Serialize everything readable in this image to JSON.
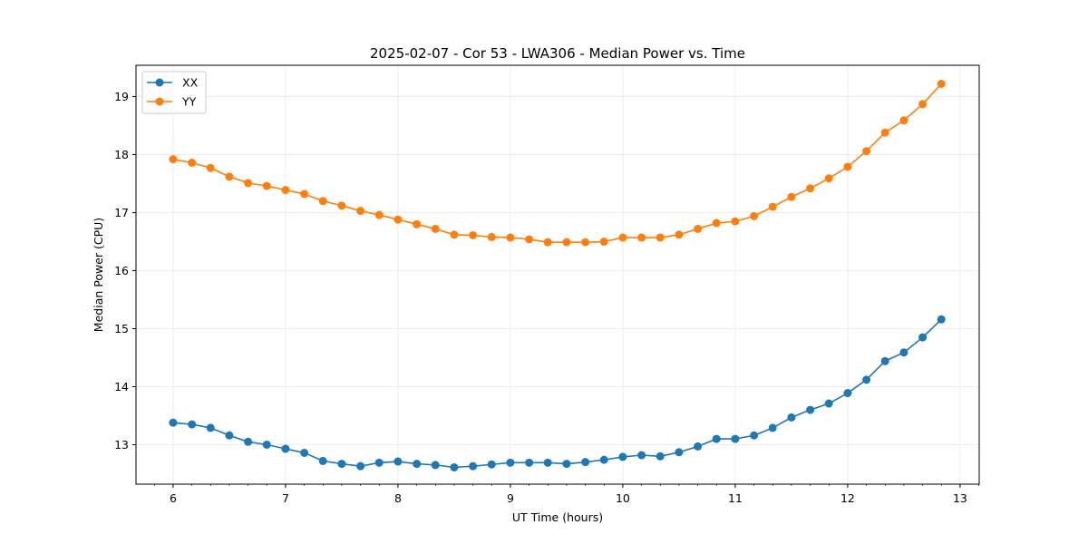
{
  "chart_data": {
    "type": "line",
    "title": "2025-02-07 - Cor 53 - LWA306 - Median Power vs. Time",
    "xlabel": "UT Time (hours)",
    "ylabel": "Median Power (CPU)",
    "xlim": [
      5.67,
      13.17
    ],
    "ylim": [
      12.32,
      19.54
    ],
    "xticks": [
      6,
      7,
      8,
      9,
      10,
      11,
      12,
      13
    ],
    "yticks": [
      13,
      14,
      15,
      16,
      17,
      18,
      19
    ],
    "grid": true,
    "legend_position": "top-left",
    "x": [
      6.0,
      6.167,
      6.333,
      6.5,
      6.667,
      6.833,
      7.0,
      7.167,
      7.333,
      7.5,
      7.667,
      7.833,
      8.0,
      8.167,
      8.333,
      8.5,
      8.667,
      8.833,
      9.0,
      9.167,
      9.333,
      9.5,
      9.667,
      9.833,
      10.0,
      10.167,
      10.333,
      10.5,
      10.667,
      10.833,
      11.0,
      11.167,
      11.333,
      11.5,
      11.667,
      11.833,
      12.0,
      12.167,
      12.333,
      12.5,
      12.667,
      12.833
    ],
    "series": [
      {
        "name": "XX",
        "color": "#1f77b4",
        "values": [
          13.38,
          13.35,
          13.29,
          13.16,
          13.05,
          13.0,
          12.93,
          12.86,
          12.72,
          12.67,
          12.63,
          12.69,
          12.71,
          12.67,
          12.65,
          12.61,
          12.63,
          12.66,
          12.69,
          12.69,
          12.69,
          12.67,
          12.7,
          12.74,
          12.79,
          12.82,
          12.8,
          12.87,
          12.97,
          13.1,
          13.1,
          13.16,
          13.29,
          13.47,
          13.6,
          13.71,
          13.89,
          14.12,
          14.44,
          14.59,
          14.85,
          15.16
        ]
      },
      {
        "name": "YY",
        "color": "#ff7f0e",
        "values": [
          17.92,
          17.86,
          17.77,
          17.62,
          17.51,
          17.46,
          17.39,
          17.32,
          17.2,
          17.12,
          17.03,
          16.96,
          16.88,
          16.8,
          16.72,
          16.62,
          16.61,
          16.58,
          16.57,
          16.54,
          16.49,
          16.49,
          16.49,
          16.5,
          16.57,
          16.57,
          16.57,
          16.62,
          16.72,
          16.82,
          16.85,
          16.94,
          17.1,
          17.27,
          17.42,
          17.59,
          17.79,
          18.06,
          18.38,
          18.59,
          18.87,
          19.22
        ]
      }
    ]
  }
}
